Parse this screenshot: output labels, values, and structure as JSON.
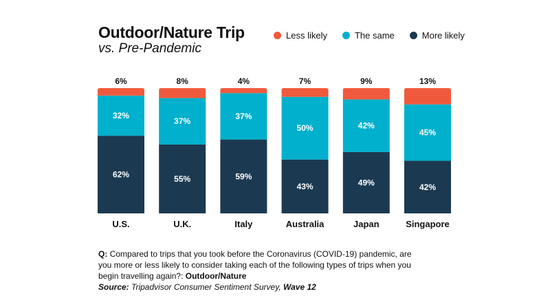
{
  "title": "Outdoor/Nature Trip",
  "subtitle": "vs. Pre-Pandemic",
  "legend": [
    {
      "label": "Less likely",
      "color": "#f05a3c"
    },
    {
      "label": "The same",
      "color": "#00b0cc"
    },
    {
      "label": "More likely",
      "color": "#1b3a52"
    }
  ],
  "footnote": {
    "q_prefix": "Q:",
    "question": "Compared to trips that you took before the Coronavirus (COVID-19) pandemic, are you more or less likely to consider taking each of the following types of trips when you begin travelling again?:",
    "topic": "Outdoor/Nature",
    "source_prefix": "Source:",
    "source_name": "Tripadvisor Consumer Sentiment Survey,",
    "source_wave": "Wave 12"
  },
  "chart_data": {
    "type": "bar",
    "stacked": true,
    "categories": [
      "U.S.",
      "U.K.",
      "Italy",
      "Australia",
      "Japan",
      "Singapore"
    ],
    "series": [
      {
        "name": "More likely",
        "values": [
          62,
          55,
          59,
          43,
          49,
          42
        ],
        "color": "#1b3a52"
      },
      {
        "name": "The same",
        "values": [
          32,
          37,
          37,
          50,
          42,
          45
        ],
        "color": "#00b0cc"
      },
      {
        "name": "Less likely",
        "values": [
          6,
          8,
          4,
          7,
          9,
          13
        ],
        "color": "#f05a3c"
      }
    ],
    "value_suffix": "%",
    "ylim": [
      0,
      100
    ],
    "grid": false,
    "legend_position": "top-right"
  }
}
